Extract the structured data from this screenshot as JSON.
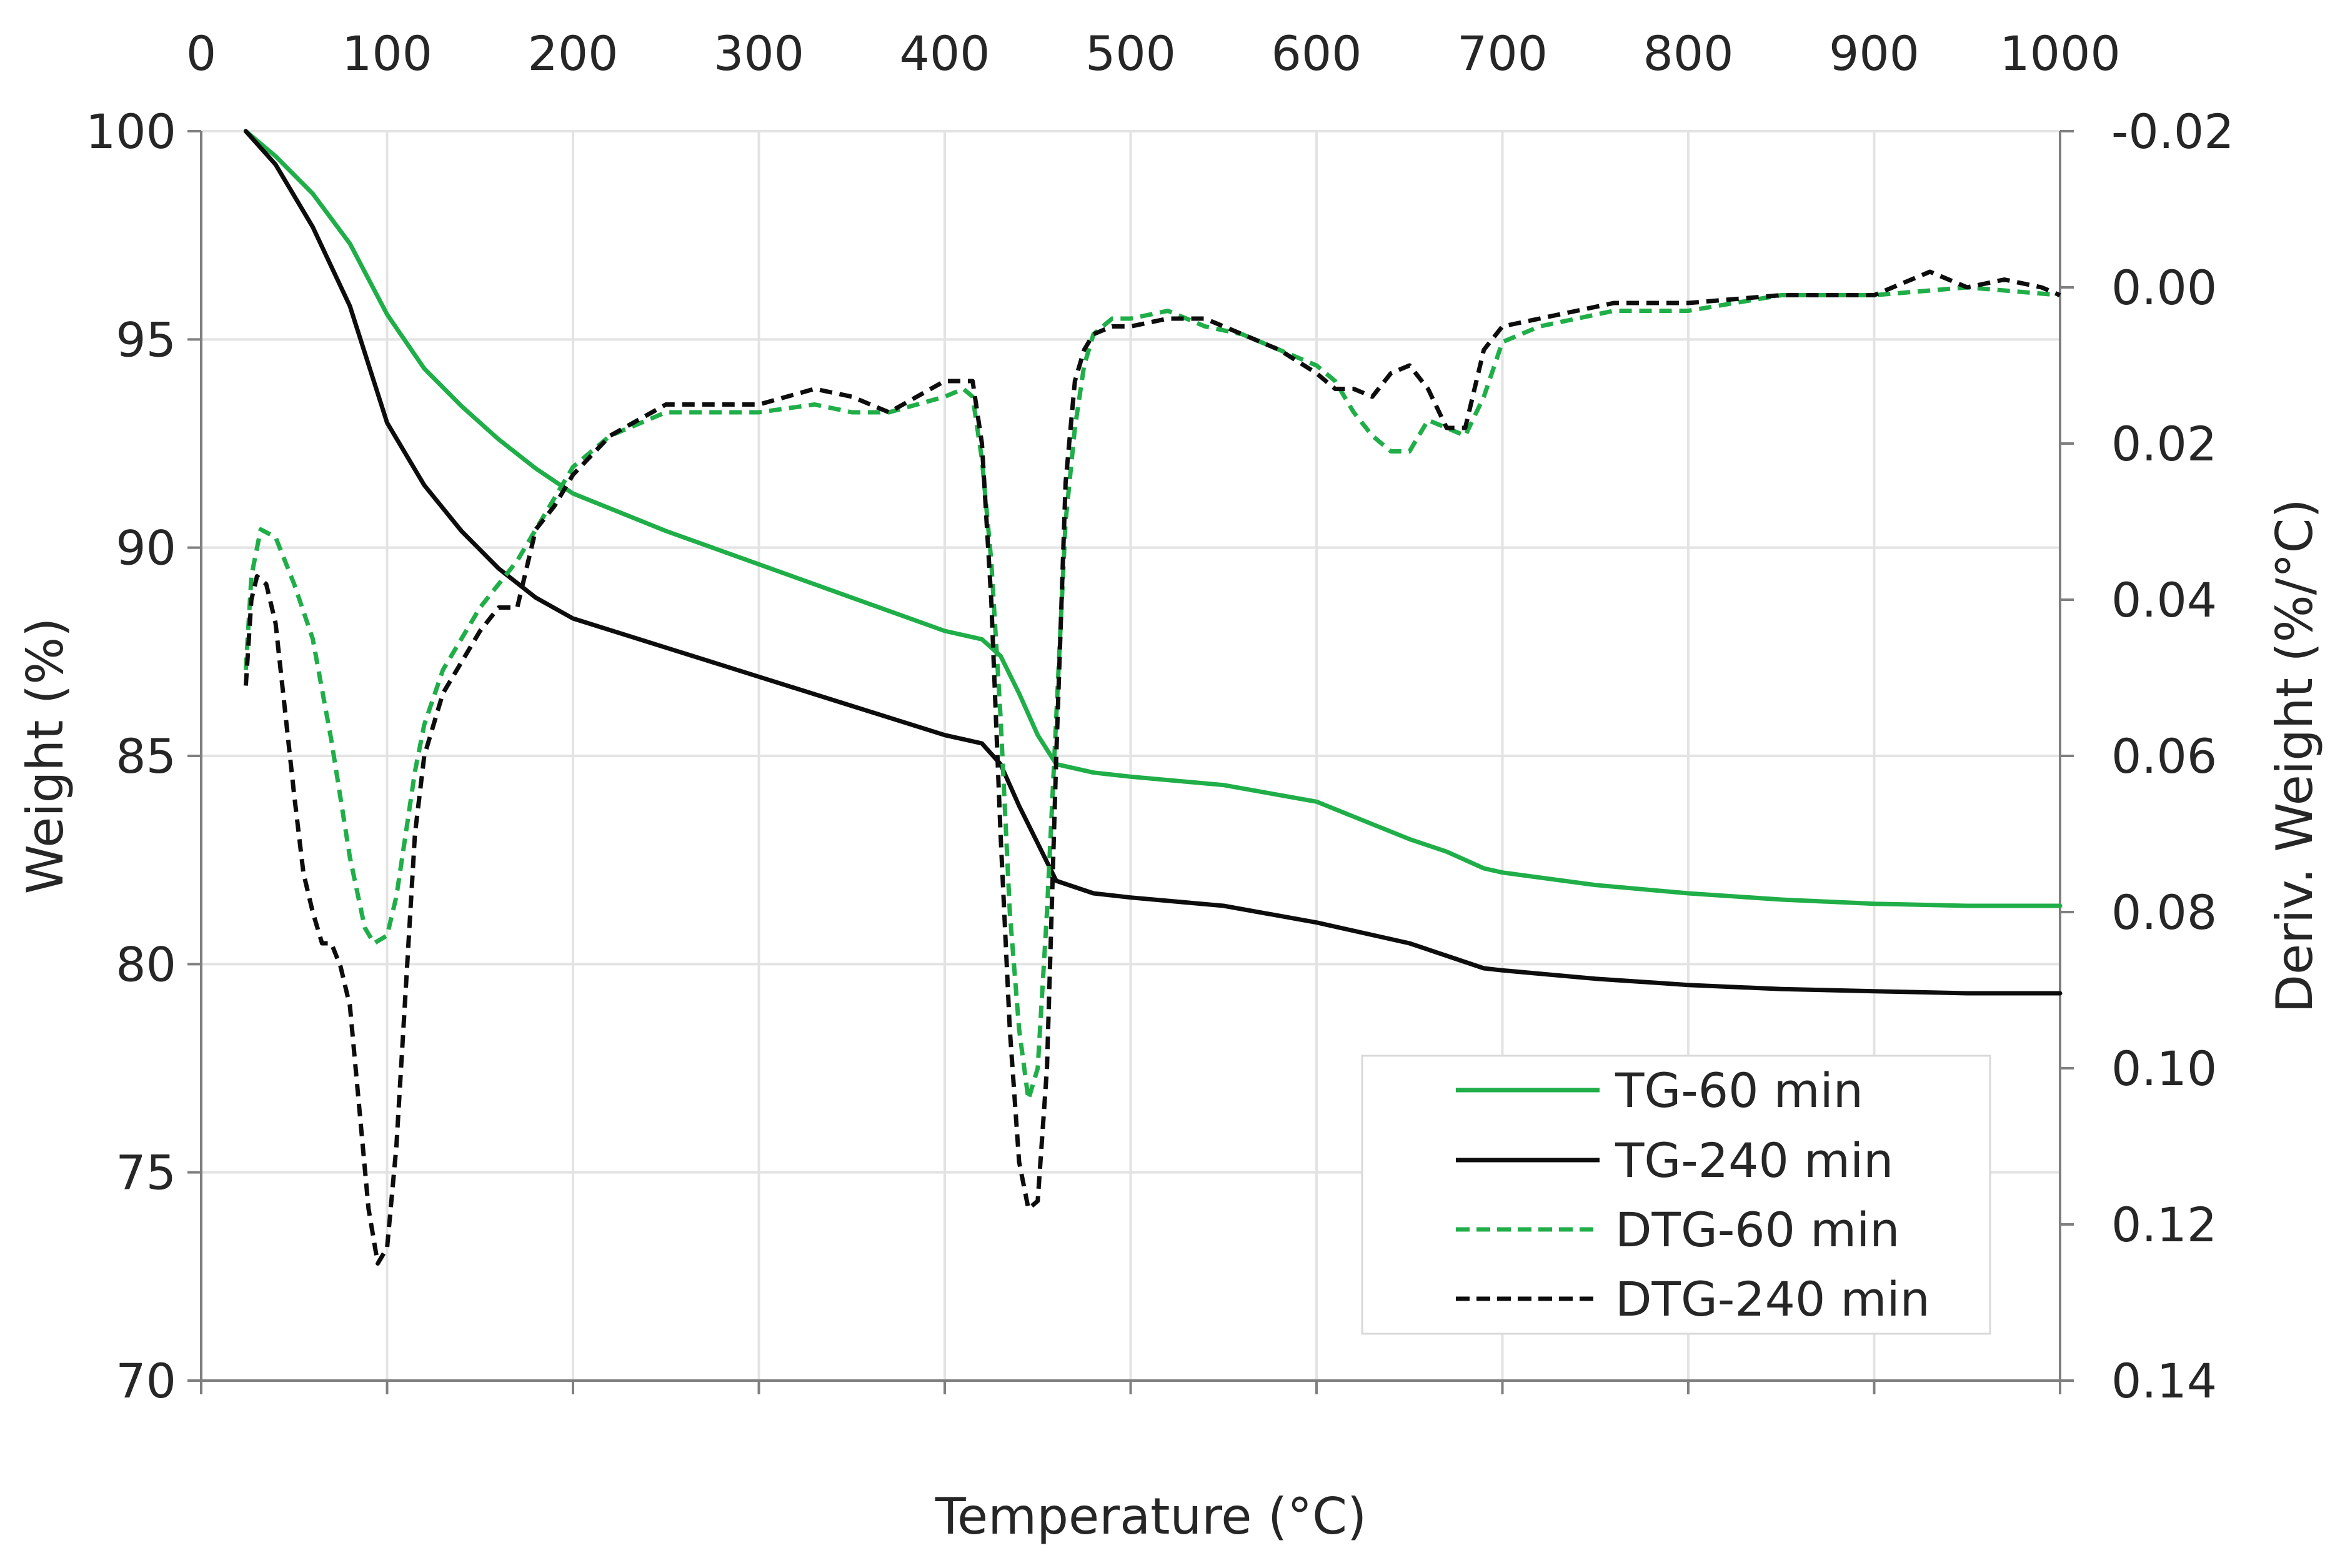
{
  "chart_data": {
    "type": "line",
    "title": "",
    "xlabel": "Temperature (°C)",
    "ylabel": "Weight (%)",
    "y2label": "Deriv. Weight (%/°C)",
    "xlim": [
      0,
      1000
    ],
    "ylim": [
      70,
      100
    ],
    "y2lim": [
      -0.02,
      0.14
    ],
    "y2_inverted": true,
    "x_ticks": [
      "0",
      "100",
      "200",
      "300",
      "400",
      "500",
      "600",
      "700",
      "800",
      "900",
      "1000"
    ],
    "y_ticks": [
      "70",
      "75",
      "80",
      "85",
      "90",
      "95",
      "100"
    ],
    "y2_ticks": [
      "-0.02",
      "0.00",
      "0.02",
      "0.04",
      "0.06",
      "0.08",
      "0.10",
      "0.12",
      "0.14"
    ],
    "grid": true,
    "legend_position": "bottom-right",
    "colors": {
      "green": "#1fae48",
      "black": "#0d0d0d",
      "axis": "#7f7f7f",
      "grid": "#e3e3e3"
    },
    "series": [
      {
        "name": "TG-60 min",
        "axis": "left",
        "style": "solid",
        "color": "#1fae48",
        "x": [
          24,
          40,
          60,
          80,
          100,
          120,
          140,
          160,
          180,
          200,
          250,
          300,
          350,
          400,
          420,
          430,
          440,
          450,
          460,
          480,
          500,
          550,
          600,
          650,
          670,
          690,
          700,
          750,
          800,
          850,
          900,
          950,
          1000
        ],
        "y": [
          100,
          99.4,
          98.5,
          97.3,
          95.6,
          94.3,
          93.4,
          92.6,
          91.9,
          91.3,
          90.4,
          89.6,
          88.8,
          88.0,
          87.8,
          87.4,
          86.5,
          85.5,
          84.8,
          84.6,
          84.5,
          84.3,
          83.9,
          83.0,
          82.7,
          82.3,
          82.2,
          81.9,
          81.7,
          81.55,
          81.45,
          81.4,
          81.4
        ]
      },
      {
        "name": "TG-240 min",
        "axis": "left",
        "style": "solid",
        "color": "#0d0d0d",
        "x": [
          24,
          40,
          60,
          80,
          100,
          120,
          140,
          160,
          180,
          200,
          250,
          300,
          350,
          400,
          420,
          430,
          440,
          450,
          460,
          480,
          500,
          550,
          600,
          650,
          670,
          690,
          700,
          750,
          800,
          850,
          900,
          950,
          1000
        ],
        "y": [
          100,
          99.2,
          97.7,
          95.8,
          93.0,
          91.5,
          90.4,
          89.5,
          88.8,
          88.3,
          87.6,
          86.9,
          86.2,
          85.5,
          85.3,
          84.8,
          83.8,
          82.9,
          82.0,
          81.7,
          81.6,
          81.4,
          81.0,
          80.5,
          80.2,
          79.9,
          79.85,
          79.65,
          79.5,
          79.4,
          79.35,
          79.3,
          79.3
        ]
      },
      {
        "name": "DTG-60 min",
        "axis": "right",
        "style": "dashed",
        "color": "#1fae48",
        "x": [
          24,
          27,
          32,
          40,
          50,
          60,
          70,
          80,
          88,
          93,
          100,
          105,
          110,
          115,
          120,
          130,
          150,
          170,
          190,
          200,
          220,
          250,
          300,
          330,
          350,
          370,
          400,
          410,
          415,
          420,
          425,
          430,
          435,
          440,
          445,
          450,
          455,
          460,
          465,
          470,
          475,
          480,
          490,
          500,
          520,
          540,
          560,
          580,
          600,
          610,
          620,
          630,
          640,
          650,
          660,
          670,
          680,
          690,
          700,
          720,
          740,
          760,
          780,
          800,
          850,
          900,
          950,
          1000
        ],
        "y": [
          0.049,
          0.037,
          0.031,
          0.032,
          0.038,
          0.045,
          0.058,
          0.073,
          0.082,
          0.084,
          0.083,
          0.078,
          0.07,
          0.062,
          0.056,
          0.049,
          0.041,
          0.035,
          0.027,
          0.023,
          0.019,
          0.016,
          0.016,
          0.015,
          0.016,
          0.016,
          0.014,
          0.013,
          0.014,
          0.022,
          0.035,
          0.055,
          0.08,
          0.095,
          0.104,
          0.1,
          0.08,
          0.055,
          0.03,
          0.018,
          0.01,
          0.006,
          0.004,
          0.004,
          0.003,
          0.005,
          0.006,
          0.008,
          0.01,
          0.012,
          0.016,
          0.019,
          0.021,
          0.021,
          0.017,
          0.018,
          0.019,
          0.014,
          0.007,
          0.005,
          0.004,
          0.003,
          0.003,
          0.003,
          0.001,
          0.001,
          0.0,
          0.001
        ]
      },
      {
        "name": "DTG-240 min",
        "axis": "right",
        "style": "dashed",
        "color": "#0d0d0d",
        "x": [
          24,
          27,
          30,
          35,
          40,
          50,
          55,
          60,
          65,
          70,
          75,
          80,
          85,
          90,
          95,
          100,
          105,
          110,
          115,
          120,
          130,
          140,
          150,
          160,
          170,
          180,
          190,
          200,
          220,
          250,
          300,
          330,
          350,
          370,
          400,
          410,
          415,
          420,
          425,
          430,
          435,
          440,
          445,
          450,
          455,
          460,
          465,
          470,
          475,
          480,
          490,
          500,
          520,
          540,
          560,
          580,
          600,
          610,
          620,
          630,
          640,
          650,
          660,
          670,
          680,
          690,
          700,
          720,
          740,
          760,
          780,
          800,
          850,
          900,
          930,
          950,
          970,
          990,
          1000
        ],
        "y": [
          0.051,
          0.04,
          0.037,
          0.038,
          0.043,
          0.065,
          0.075,
          0.08,
          0.084,
          0.084,
          0.087,
          0.092,
          0.105,
          0.118,
          0.125,
          0.123,
          0.11,
          0.09,
          0.07,
          0.06,
          0.052,
          0.048,
          0.044,
          0.041,
          0.041,
          0.031,
          0.028,
          0.024,
          0.019,
          0.015,
          0.015,
          0.013,
          0.014,
          0.016,
          0.012,
          0.012,
          0.012,
          0.02,
          0.04,
          0.07,
          0.095,
          0.112,
          0.118,
          0.117,
          0.1,
          0.06,
          0.025,
          0.012,
          0.008,
          0.006,
          0.005,
          0.005,
          0.004,
          0.004,
          0.006,
          0.008,
          0.011,
          0.013,
          0.013,
          0.014,
          0.011,
          0.01,
          0.013,
          0.018,
          0.018,
          0.008,
          0.005,
          0.004,
          0.003,
          0.002,
          0.002,
          0.002,
          0.001,
          0.001,
          -0.002,
          0.0,
          -0.001,
          0.0,
          0.001
        ]
      }
    ]
  }
}
